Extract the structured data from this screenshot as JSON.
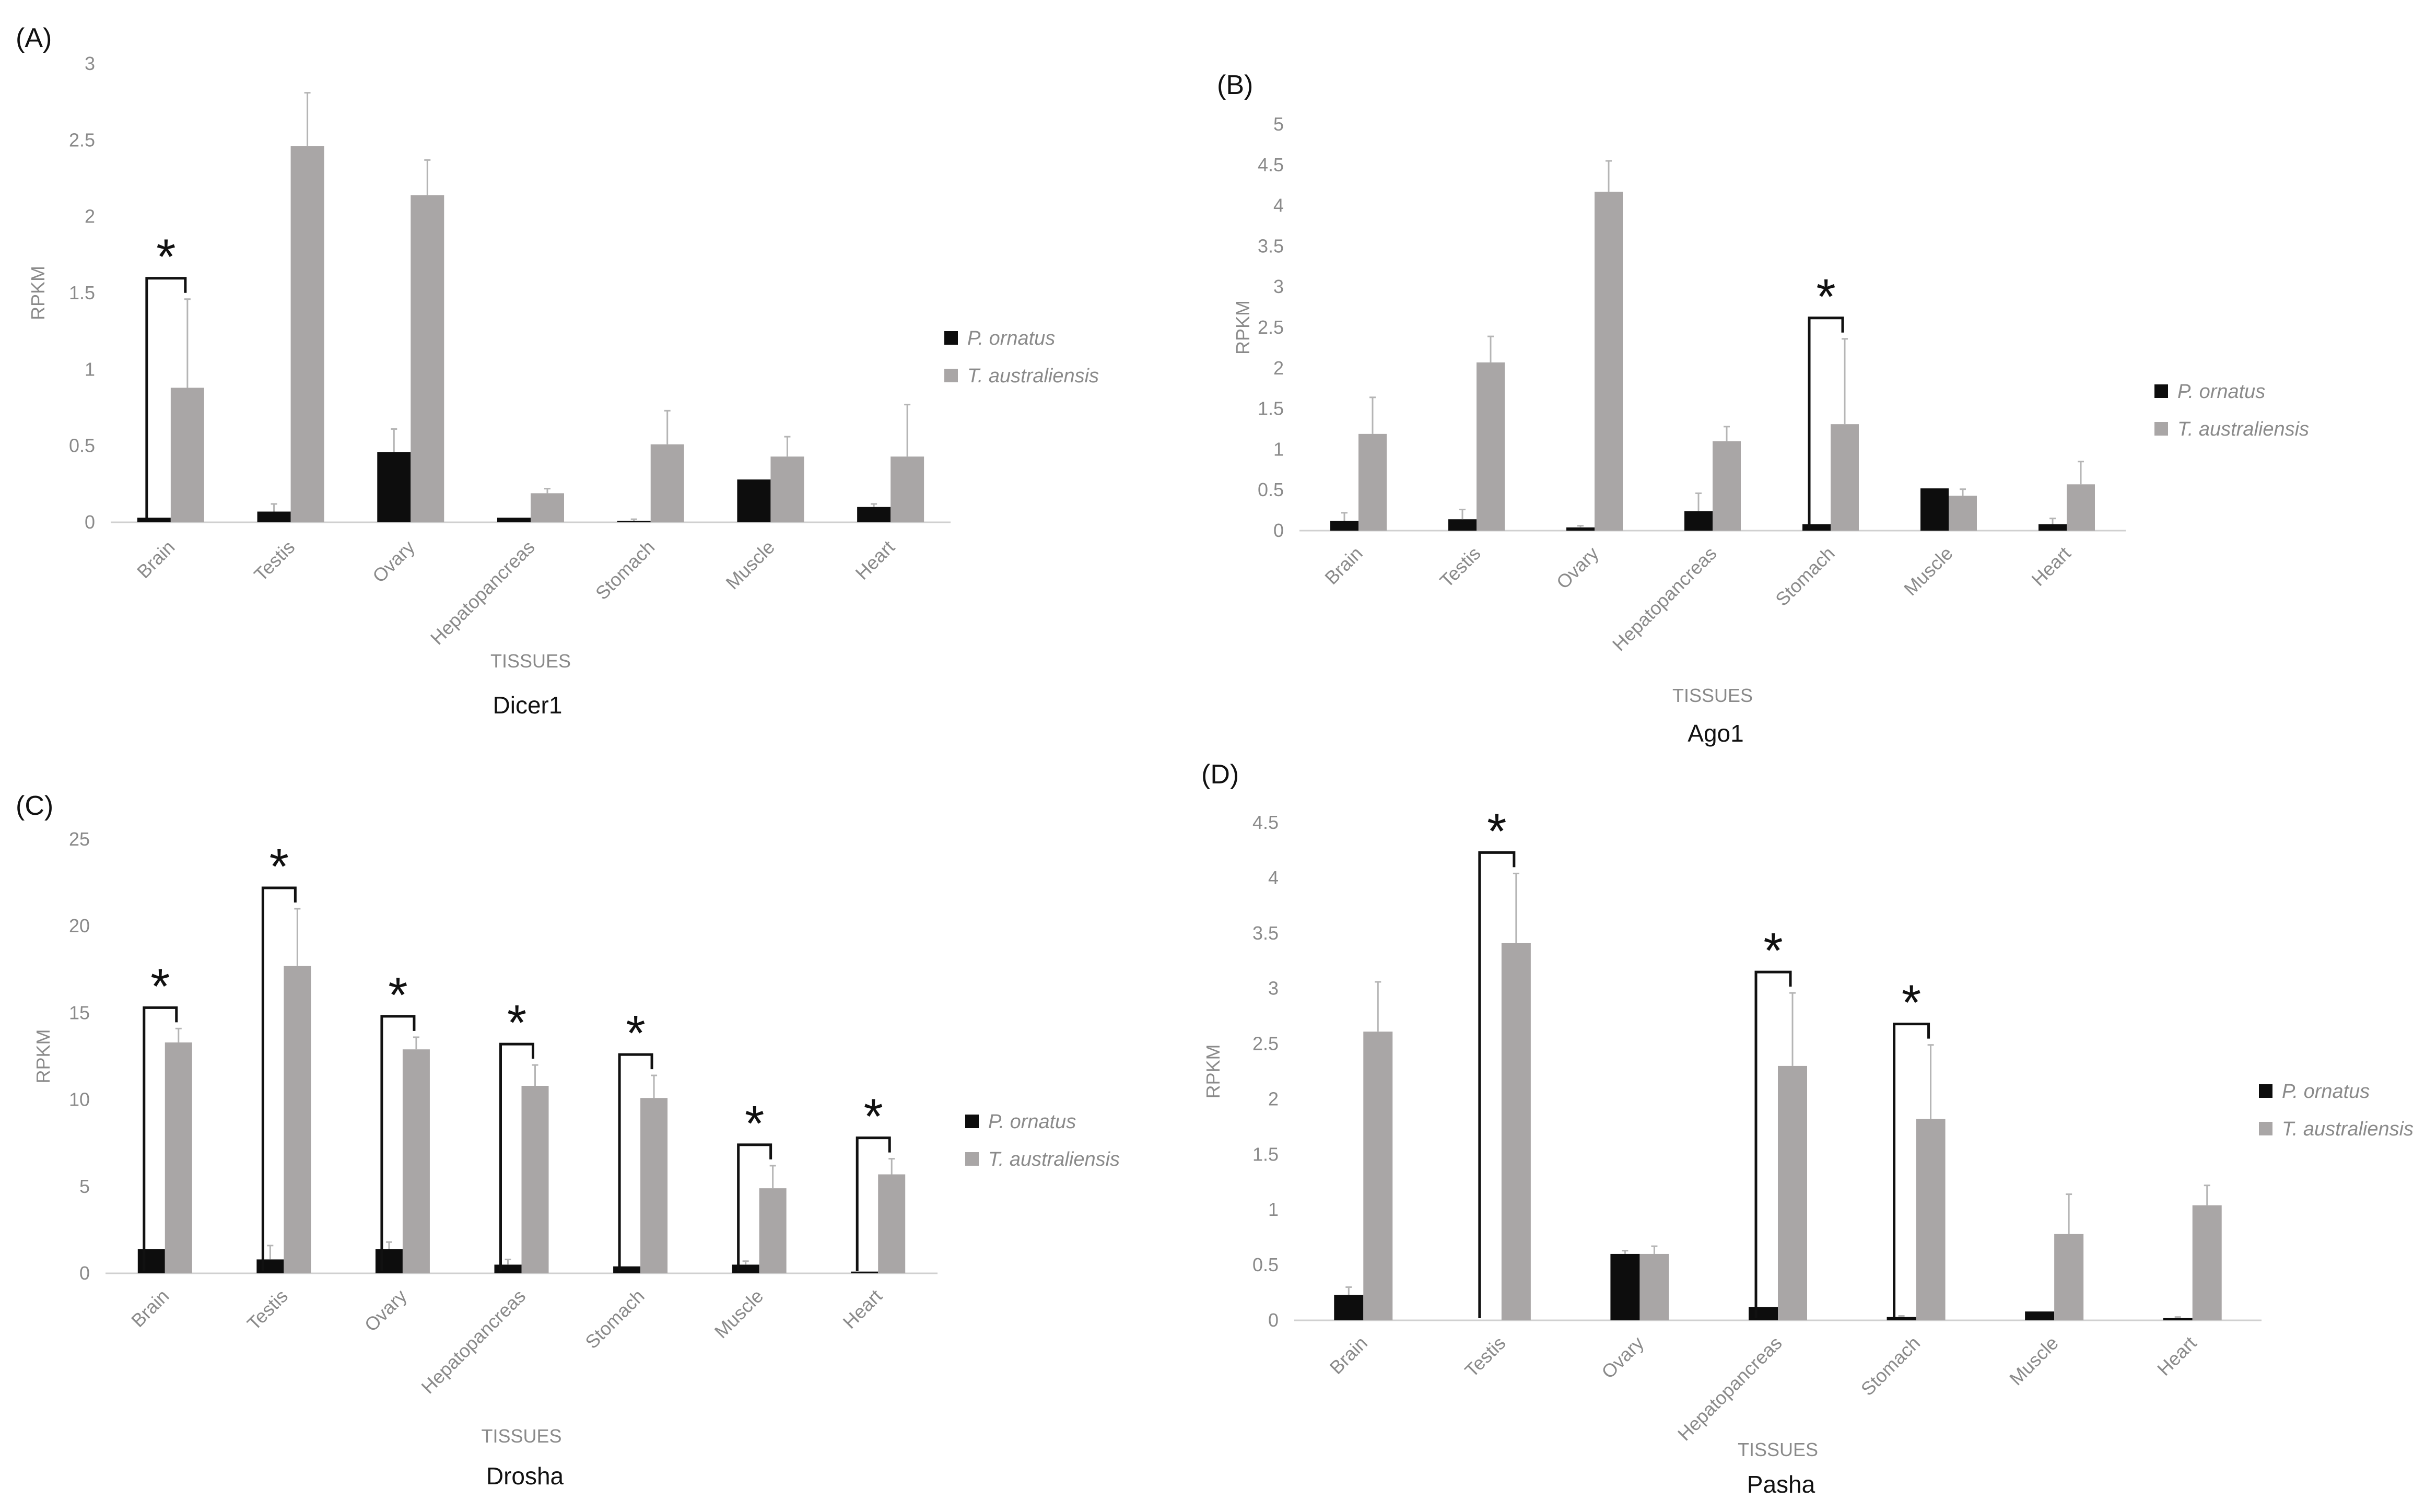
{
  "colors": {
    "p_ornatus": "#0d0d0d",
    "t_australiensis": "#a9a6a6",
    "axis": "#d0d0d0",
    "text": "#8a8a8a",
    "annotation": "#111111"
  },
  "chart_data": [
    {
      "type": "bar",
      "panel": "(A)",
      "title": "Dicer1",
      "xlabel": "TISSUES",
      "ylabel": "RPKM",
      "categories": [
        "Brain",
        "Testis",
        "Ovary",
        "Hepatopancreas",
        "Stomach",
        "Muscle",
        "Heart"
      ],
      "ylim": [
        0,
        3
      ],
      "yticks": [
        0,
        0.5,
        1,
        1.5,
        2,
        2.5,
        3
      ],
      "yticklabels": [
        "0",
        "0.5",
        "1",
        "1.5",
        "2",
        "2.5",
        "3"
      ],
      "legend": "right",
      "grid": false,
      "series": [
        {
          "name": "P. ornatus",
          "values": [
            0.03,
            0.07,
            0.46,
            0.03,
            0.01,
            0.28,
            0.1
          ],
          "errors": [
            0,
            0.05,
            0.15,
            0,
            0.01,
            0,
            0.02
          ]
        },
        {
          "name": "T. australiensis",
          "values": [
            0.88,
            2.46,
            2.14,
            0.19,
            0.51,
            0.43,
            0.43
          ],
          "errors": [
            0.58,
            0.35,
            0.23,
            0.03,
            0.22,
            0.13,
            0.34
          ]
        }
      ],
      "significant": [
        0
      ],
      "significance_marker": "*"
    },
    {
      "type": "bar",
      "panel": "(B)",
      "title": "Ago1",
      "xlabel": "TISSUES",
      "ylabel": "RPKM",
      "categories": [
        "Brain",
        "Testis",
        "Ovary",
        "Hepatopancreas",
        "Stomach",
        "Muscle",
        "Heart"
      ],
      "ylim": [
        0,
        5
      ],
      "yticks": [
        0,
        0.5,
        1,
        1.5,
        2,
        2.5,
        3,
        3.5,
        4,
        4.5,
        5
      ],
      "yticklabels": [
        "0",
        "0.5",
        "1",
        "1.5",
        "2",
        "2.5",
        "3",
        "3.5",
        "4",
        "4.5",
        "5"
      ],
      "legend": "right",
      "grid": false,
      "series": [
        {
          "name": "P. ornatus",
          "values": [
            0.12,
            0.14,
            0.04,
            0.24,
            0.08,
            0.52,
            0.08
          ],
          "errors": [
            0.1,
            0.12,
            0.02,
            0.22,
            0,
            0,
            0.07
          ]
        },
        {
          "name": "T. australiensis",
          "values": [
            1.19,
            2.07,
            4.17,
            1.1,
            1.31,
            0.43,
            0.57
          ],
          "errors": [
            0.45,
            0.32,
            0.38,
            0.18,
            1.05,
            0.08,
            0.28
          ]
        }
      ],
      "significant": [
        4
      ],
      "significance_marker": "*"
    },
    {
      "type": "bar",
      "panel": "(C)",
      "title": "Drosha",
      "xlabel": "TISSUES",
      "ylabel": "RPKM",
      "categories": [
        "Brain",
        "Testis",
        "Ovary",
        "Hepatopancreas",
        "Stomach",
        "Muscle",
        "Heart"
      ],
      "ylim": [
        0,
        25
      ],
      "yticks": [
        0,
        5,
        10,
        15,
        20,
        25
      ],
      "yticklabels": [
        "0",
        "5",
        "10",
        "15",
        "20",
        "25"
      ],
      "legend": "right",
      "grid": false,
      "series": [
        {
          "name": "P. ornatus",
          "values": [
            1.4,
            0.8,
            1.4,
            0.5,
            0.4,
            0.5,
            0.1
          ],
          "errors": [
            0,
            0.8,
            0.4,
            0.3,
            0,
            0.2,
            0
          ],
          "error_style": [
            "none",
            "bar",
            "bar",
            "bar",
            "none",
            "bar",
            "none"
          ]
        },
        {
          "name": "T. australiensis",
          "values": [
            13.3,
            17.7,
            12.9,
            10.8,
            10.1,
            4.9,
            5.7
          ],
          "errors": [
            0.8,
            3.3,
            0.7,
            1.2,
            1.3,
            1.3,
            0.9
          ]
        }
      ],
      "significant": [
        0,
        1,
        2,
        3,
        4,
        5,
        6
      ],
      "significance_marker": "*"
    },
    {
      "type": "bar",
      "panel": "(D)",
      "title": "Pasha",
      "xlabel": "TISSUES",
      "ylabel": "RPKM",
      "categories": [
        "Brain",
        "Testis",
        "Ovary",
        "Hepatopancreas",
        "Stomach",
        "Muscle",
        "Heart"
      ],
      "ylim": [
        0,
        4.5
      ],
      "yticks": [
        0,
        0.5,
        1,
        1.5,
        2,
        2.5,
        3,
        3.5,
        4,
        4.5
      ],
      "yticklabels": [
        "0",
        "0.5",
        "1",
        "1.5",
        "2",
        "2.5",
        "3",
        "3.5",
        "4",
        "4.5"
      ],
      "legend": "right",
      "grid": false,
      "series": [
        {
          "name": "P. ornatus",
          "values": [
            0.23,
            0,
            0.6,
            0.12,
            0.03,
            0.08,
            0.02
          ],
          "errors": [
            0.07,
            0,
            0.03,
            0,
            0.01,
            0,
            0.01
          ]
        },
        {
          "name": "T. australiensis",
          "values": [
            2.61,
            3.41,
            0.6,
            2.3,
            1.82,
            0.78,
            1.04
          ],
          "errors": [
            0.45,
            0.63,
            0.07,
            0.66,
            0.67,
            0.36,
            0.18
          ]
        }
      ],
      "significant": [
        1,
        3,
        4
      ],
      "significance_marker": "*"
    }
  ]
}
